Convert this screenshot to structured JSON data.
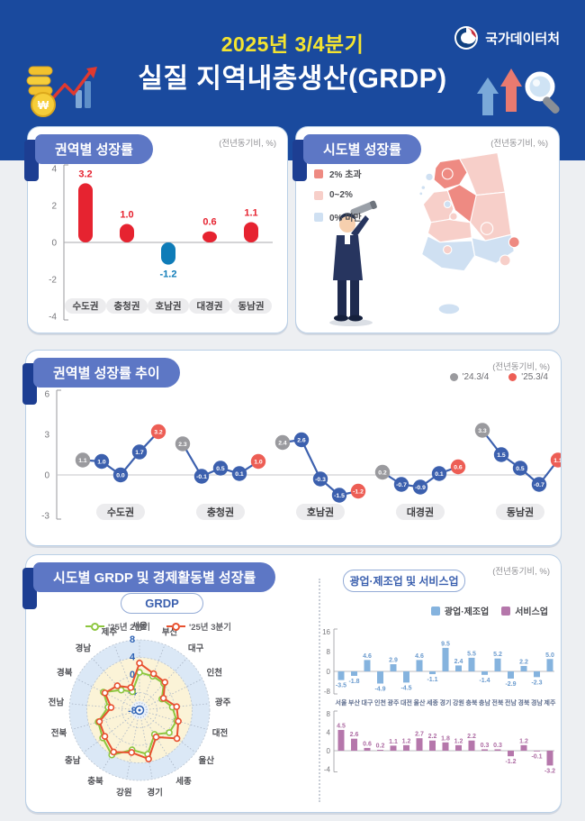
{
  "meta": {
    "unit_note": "(전년동기비, %)"
  },
  "header": {
    "quarter": "2025년 3/4분기",
    "title": "실질 지역내총생산(GRDP)",
    "logo_text": "국가데이터처",
    "bg_color": "#1a4a9e",
    "quarter_color": "#f4e430"
  },
  "sections": {
    "bottom_title": "시도별 GRDP 및 경제활동별 성장률"
  },
  "chart_data": [
    {
      "type": "bar",
      "title": "권역별 성장률",
      "note": "(전년동기비, %)",
      "categories": [
        "수도권",
        "충청권",
        "호남권",
        "대경권",
        "동남권"
      ],
      "values": [
        3.2,
        1.0,
        -1.2,
        0.6,
        1.1
      ],
      "ylim": [
        -4,
        4
      ],
      "yticks": [
        4,
        2,
        0,
        -2,
        -4
      ],
      "positive_color": "#e62330",
      "negative_color": "#0f7cb8"
    },
    {
      "type": "choropleth-map",
      "title": "시도별 성장률",
      "note": "(전년동기비, %)",
      "legend": [
        {
          "label": "2% 초과",
          "cat": "high",
          "color": "#ee8a82"
        },
        {
          "label": "0~2%",
          "cat": "mid",
          "color": "#f7cfc9"
        },
        {
          "label": "0% 미만",
          "cat": "low",
          "color": "#cfe0f2"
        }
      ],
      "region_categories": {
        "서울": "high",
        "인천": "low",
        "경기": "high",
        "강원": "mid",
        "충북": "high",
        "충남": "mid",
        "세종": "low",
        "대전": "mid",
        "전북": "mid",
        "전남": "low",
        "광주": "mid",
        "경북": "mid",
        "대구": "mid",
        "울산": "high",
        "부산": "mid",
        "경남": "low",
        "제주": "low"
      }
    },
    {
      "type": "line",
      "title": "권역별 성장률 추이",
      "note": "(전년동기비, %)",
      "legend": [
        {
          "label": "'24.3/4",
          "color": "#9a9a9e"
        },
        {
          "label": "'25.3/4",
          "color": "#ed5e55"
        }
      ],
      "ylim": [
        -3,
        6
      ],
      "yticks": [
        6,
        3,
        0,
        -3
      ],
      "point_colors": [
        "#9a9a9e",
        "#3c60ae",
        "#3c60ae",
        "#3c60ae",
        "#ed5e55"
      ],
      "line_color": "#3c60ae",
      "groups": [
        {
          "label": "수도권",
          "values": [
            1.1,
            1.0,
            0.0,
            1.7,
            3.2
          ]
        },
        {
          "label": "충청권",
          "values": [
            2.3,
            -0.1,
            0.5,
            0.1,
            1.0
          ]
        },
        {
          "label": "호남권",
          "values": [
            2.4,
            2.6,
            -0.3,
            -1.5,
            -1.2
          ]
        },
        {
          "label": "대경권",
          "values": [
            0.2,
            -0.7,
            -0.9,
            0.1,
            0.6
          ]
        },
        {
          "label": "동남권",
          "values": [
            3.3,
            1.5,
            0.5,
            -0.7,
            1.1
          ]
        }
      ]
    },
    {
      "type": "radar",
      "subtitle": "GRDP",
      "axes": [
        "서울",
        "부산",
        "대구",
        "인천",
        "광주",
        "대전",
        "울산",
        "세종",
        "경기",
        "강원",
        "충북",
        "충남",
        "전북",
        "전남",
        "경북",
        "경남",
        "제주"
      ],
      "scale_ticks": [
        8,
        4,
        0,
        -4,
        -8
      ],
      "ylim": [
        -8,
        8
      ],
      "series": [
        {
          "name": "'25년 2분기",
          "color": "#8dc63f",
          "values": [
            0.6,
            0.3,
            0.2,
            -2.3,
            -0.5,
            0.8,
            0.5,
            -1.5,
            2.2,
            1.2,
            4.0,
            2.5,
            1.8,
            -0.8,
            1.2,
            -1.8,
            -3.5
          ]
        },
        {
          "name": "'25년 3분기",
          "color": "#e8502f",
          "values": [
            2.7,
            0.9,
            0.6,
            -1.9,
            0.5,
            1.2,
            2.7,
            -0.8,
            3.3,
            1.8,
            3.2,
            1.9,
            1.5,
            -1.5,
            0.8,
            -0.5,
            -2.5
          ]
        }
      ]
    },
    {
      "type": "bar",
      "subtitle": "광업·제조업 및 서비스업",
      "note": "(전년동기비, %)",
      "categories": [
        "서울",
        "부산",
        "대구",
        "인천",
        "광주",
        "대전",
        "울산",
        "세종",
        "경기",
        "강원",
        "충북",
        "충남",
        "전북",
        "전남",
        "경북",
        "경남",
        "제주"
      ],
      "series": [
        {
          "name": "광업·제조업",
          "color": "#85b3de",
          "label_color": "#6b9bce",
          "yticks": [
            16,
            8,
            0,
            -8
          ],
          "ylim": [
            -8,
            16
          ],
          "values": [
            -3.5,
            -1.8,
            4.6,
            -4.9,
            2.9,
            -4.5,
            4.6,
            -1.1,
            9.5,
            2.4,
            5.5,
            -1.4,
            5.2,
            -2.9,
            2.2,
            -2.3,
            5.0
          ]
        },
        {
          "name": "서비스업",
          "color": "#b577ab",
          "label_color": "#ad6ca3",
          "yticks": [
            8,
            4,
            0,
            -4
          ],
          "ylim": [
            -4,
            8
          ],
          "values": [
            4.5,
            2.6,
            0.6,
            0.2,
            1.1,
            1.2,
            2.7,
            2.2,
            1.8,
            1.2,
            2.2,
            0.3,
            0.3,
            -1.2,
            1.2,
            -0.1,
            -3.2
          ]
        }
      ]
    }
  ]
}
